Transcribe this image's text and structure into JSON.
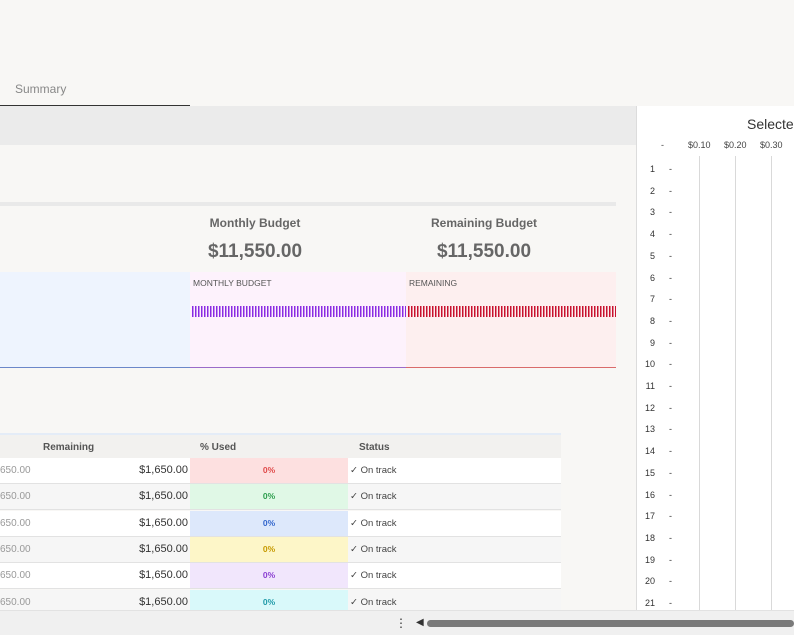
{
  "tabs": [
    {
      "label": "Summary"
    }
  ],
  "kpis": [
    {
      "label": "Monthly Budget",
      "value": "$11,550.00"
    },
    {
      "label": "Remaining Budget",
      "value": "$11,550.00"
    }
  ],
  "boxes": {
    "monthly_label": "MONTHLY BUDGET",
    "remaining_label": "REMAINING"
  },
  "table": {
    "headers": [
      "Remaining",
      "% Used",
      "Status"
    ],
    "rows": [
      {
        "prev": "650.00",
        "remaining": "$1,650.00",
        "pct": "0%",
        "status": "✓ On track"
      },
      {
        "prev": "650.00",
        "remaining": "$1,650.00",
        "pct": "0%",
        "status": "✓ On track"
      },
      {
        "prev": "650.00",
        "remaining": "$1,650.00",
        "pct": "0%",
        "status": "✓ On track"
      },
      {
        "prev": "650.00",
        "remaining": "$1,650.00",
        "pct": "0%",
        "status": "✓ On track"
      },
      {
        "prev": "650.00",
        "remaining": "$1,650.00",
        "pct": "0%",
        "status": "✓ On track"
      },
      {
        "prev": "650.00",
        "remaining": "$1,650.00",
        "pct": "0%",
        "status": "✓ On track"
      }
    ],
    "pct_colors": [
      {
        "bg": "#fde0e0",
        "fg": "#e04b4b"
      },
      {
        "bg": "#e0f8e6",
        "fg": "#2e9e4e"
      },
      {
        "bg": "#dde8fb",
        "fg": "#3366cc"
      },
      {
        "bg": "#fdf6c8",
        "fg": "#c79a00"
      },
      {
        "bg": "#f1e6fc",
        "fg": "#8a3fd1"
      },
      {
        "bg": "#d9f9fa",
        "fg": "#1f9aa8"
      }
    ]
  },
  "side_panel": {
    "title": "Selected",
    "dash": "-",
    "axis_labels": [
      "$0.10",
      "$0.20",
      "$0.30"
    ],
    "rows": [
      "1",
      "2",
      "3",
      "4",
      "5",
      "6",
      "7",
      "8",
      "9",
      "10",
      "11",
      "12",
      "13",
      "14",
      "15",
      "16",
      "17",
      "18",
      "19",
      "20",
      "21"
    ]
  },
  "bottom_bar": {
    "menu_icon": "⋮",
    "scroll_left_icon": "◀"
  }
}
